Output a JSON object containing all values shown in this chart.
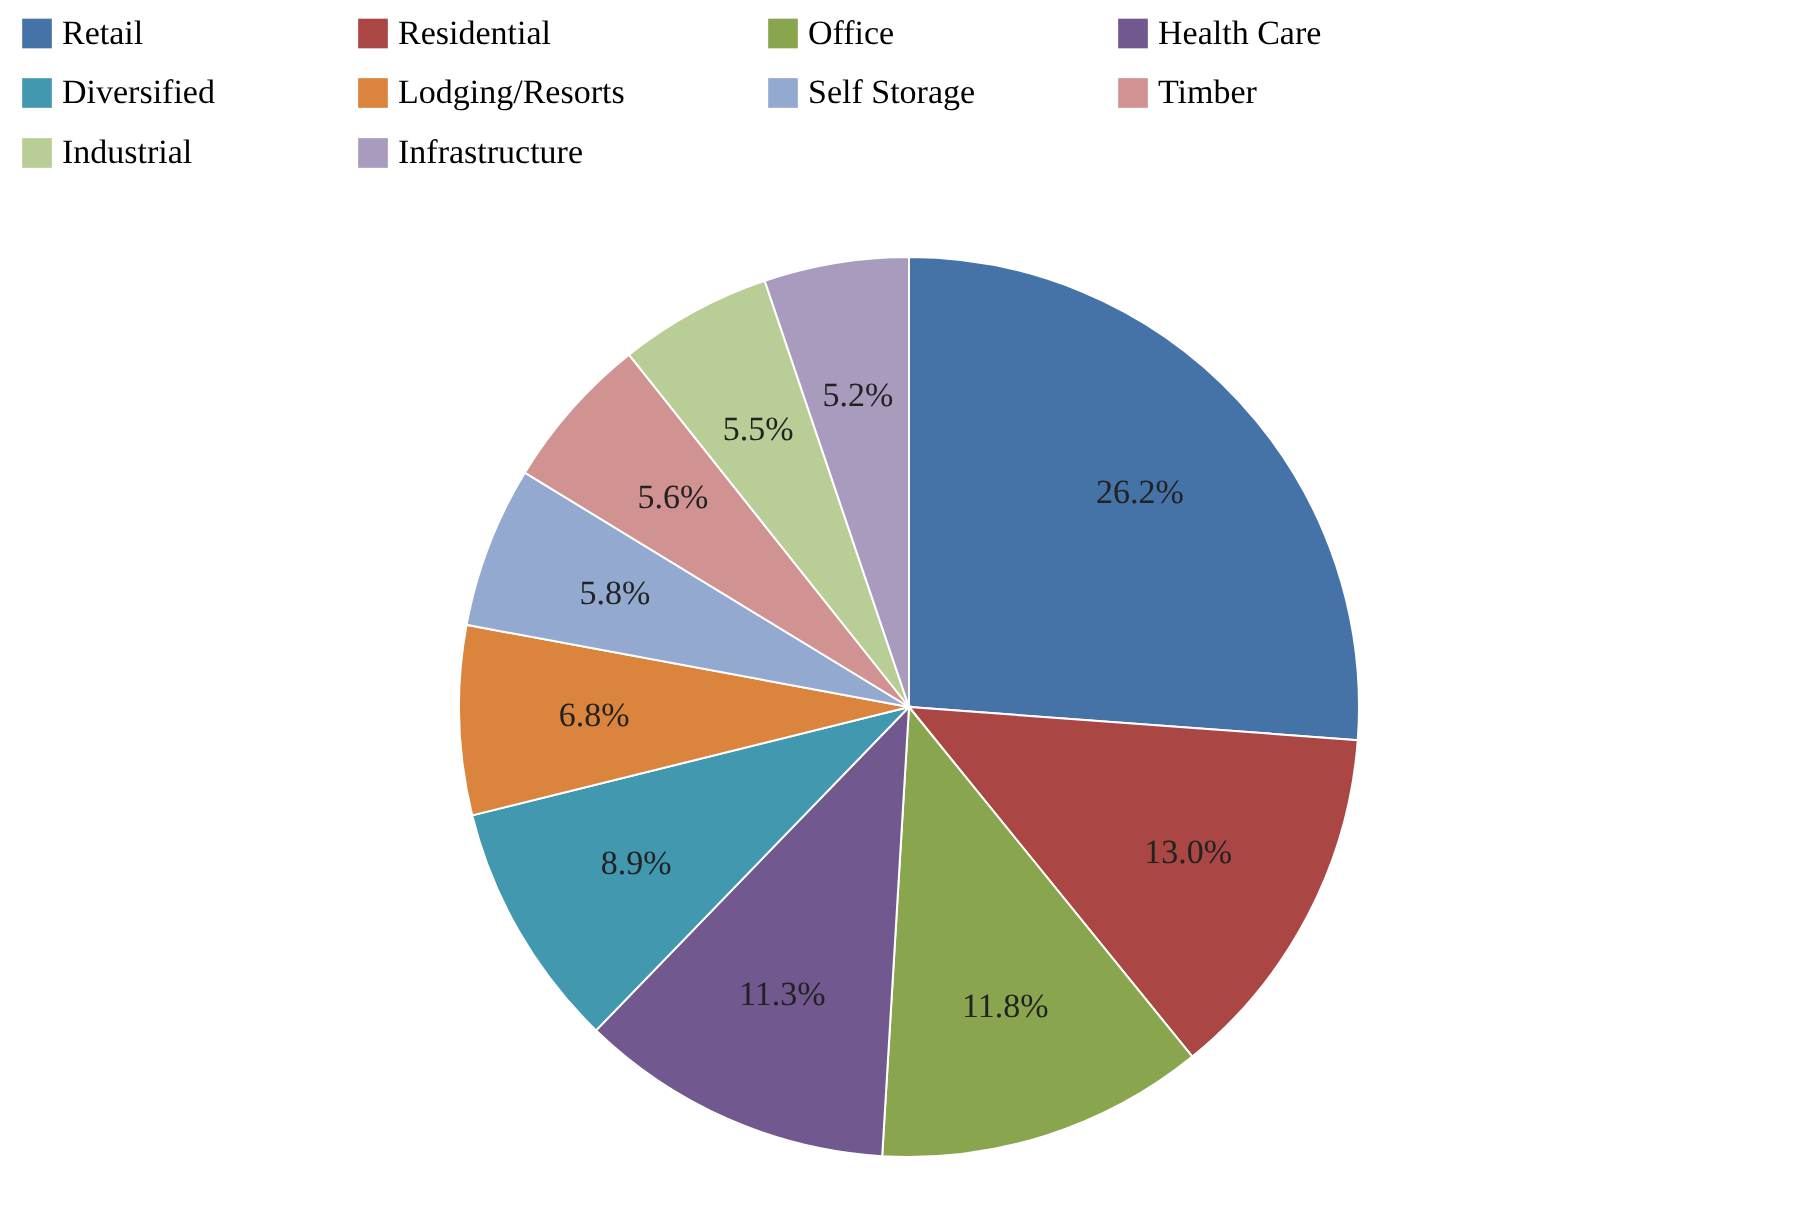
{
  "chart_data": {
    "type": "pie",
    "categories": [
      "Retail",
      "Residential",
      "Office",
      "Health  Care",
      "Diversified",
      "Lodging/Resorts",
      "Self Storage",
      "Timber",
      "Industrial",
      "Infrastructure"
    ],
    "values": [
      26.2,
      13.0,
      11.8,
      11.3,
      8.9,
      6.8,
      5.8,
      5.6,
      5.5,
      5.2
    ],
    "colors": [
      "#4572a7",
      "#aa4643",
      "#89a54e",
      "#71588f",
      "#4198af",
      "#db843d",
      "#93a9cf",
      "#d19392",
      "#b9cd96",
      "#a99bbd"
    ],
    "value_labels": [
      "26.2%",
      "13.0%",
      "11.8%",
      "11.3%",
      "8.9%",
      "6.8%",
      "5.8%",
      "5.6%",
      "5.5%",
      "5.2%"
    ],
    "legend": "top"
  }
}
